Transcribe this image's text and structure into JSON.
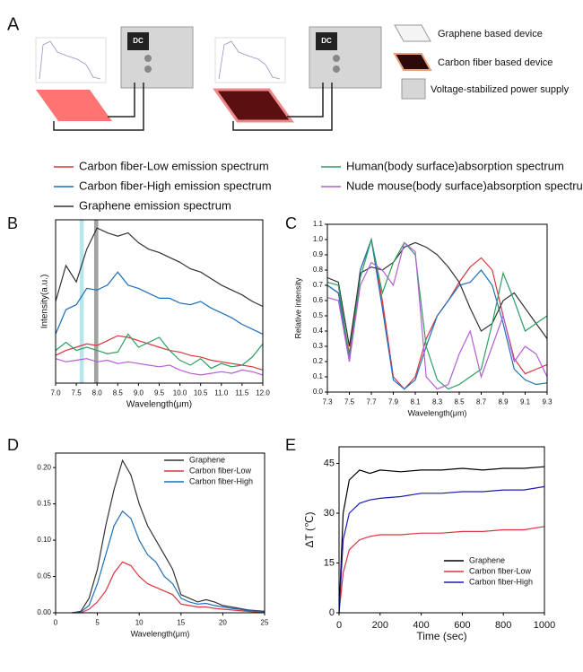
{
  "panel_a": {
    "label": "A",
    "power_label": "DC",
    "legend": [
      "Graphene based device",
      "Carbon fiber based device",
      "Voltage-stabilized power supply"
    ]
  },
  "chart_data": [
    {
      "type": "line",
      "panel_label": "B",
      "legend_position": "top",
      "xlabel": "Wavelength(μm)",
      "ylabel": "Intensity(a.u.)",
      "xlim": [
        7,
        12
      ],
      "ylim": [
        0,
        1
      ],
      "xticks": [
        {
          "value": 7,
          "label": "7.0"
        },
        7.5,
        {
          "value": 8,
          "label": "8.0"
        },
        8.5,
        {
          "value": 9,
          "label": "9.0"
        },
        9.5,
        {
          "value": 10,
          "label": "10.0"
        },
        10.5,
        {
          "value": 11,
          "label": "11.0"
        },
        11.5,
        {
          "value": 12,
          "label": "12.0"
        }
      ],
      "highlight_bands": [
        {
          "range": [
            7.58,
            7.68
          ],
          "color": "#7fd0de"
        },
        {
          "range": [
            7.93,
            8.03
          ],
          "color": "#555555"
        }
      ],
      "x": [
        7,
        7.25,
        7.5,
        7.75,
        8,
        8.25,
        8.5,
        8.75,
        9,
        9.25,
        9.5,
        9.75,
        10,
        10.25,
        10.5,
        10.75,
        11,
        11.25,
        11.5,
        11.75,
        12
      ],
      "series": [
        {
          "name": "Carbon fiber-Low emission spectrum",
          "color": "#d9363e",
          "values": [
            0.17,
            0.2,
            0.22,
            0.24,
            0.23,
            0.26,
            0.29,
            0.28,
            0.26,
            0.24,
            0.22,
            0.2,
            0.19,
            0.17,
            0.16,
            0.14,
            0.13,
            0.12,
            0.11,
            0.1,
            0.08
          ]
        },
        {
          "name": "Carbon fiber-High emission spectrum",
          "color": "#1f6fb8",
          "values": [
            0.3,
            0.45,
            0.48,
            0.58,
            0.57,
            0.6,
            0.68,
            0.6,
            0.58,
            0.55,
            0.52,
            0.52,
            0.49,
            0.48,
            0.5,
            0.46,
            0.43,
            0.4,
            0.36,
            0.33,
            0.3
          ]
        },
        {
          "name": "Graphene emission spectrum",
          "color": "#333333",
          "values": [
            0.5,
            0.72,
            0.62,
            0.82,
            0.95,
            0.92,
            0.9,
            0.92,
            0.86,
            0.82,
            0.8,
            0.77,
            0.74,
            0.7,
            0.68,
            0.64,
            0.6,
            0.57,
            0.54,
            0.5,
            0.47
          ]
        },
        {
          "name": "Human(body surface)absorption spectrum",
          "color": "#2e9e62",
          "values": [
            0.2,
            0.25,
            0.2,
            0.22,
            0.2,
            0.18,
            0.19,
            0.3,
            0.22,
            0.25,
            0.28,
            0.2,
            0.14,
            0.11,
            0.15,
            0.09,
            0.12,
            0.1,
            0.11,
            0.16,
            0.24
          ]
        },
        {
          "name": "Nude mouse(body surface)absorption spectrum",
          "color": "#b45fd4",
          "values": [
            0.15,
            0.13,
            0.14,
            0.15,
            0.13,
            0.14,
            0.12,
            0.13,
            0.12,
            0.11,
            0.1,
            0.11,
            0.08,
            0.06,
            0.05,
            0.06,
            0.07,
            0.06,
            0.08,
            0.07,
            0.05
          ]
        }
      ]
    },
    {
      "type": "line",
      "panel_label": "C",
      "xlabel": "Wavelength(μm)",
      "ylabel": "Relative intensity",
      "xlim": [
        7.3,
        9.3
      ],
      "ylim": [
        0,
        1.1
      ],
      "xticks": [
        7.3,
        7.5,
        7.7,
        7.9,
        8.1,
        8.3,
        8.5,
        8.7,
        8.9,
        9.1,
        9.3
      ],
      "yticks": [
        {
          "value": 0,
          "label": "0.0"
        },
        0.1,
        0.2,
        0.3,
        0.4,
        0.5,
        0.6,
        0.7,
        0.8,
        0.9,
        {
          "value": 1,
          "label": "1.0"
        },
        1.1
      ],
      "x": [
        7.3,
        7.4,
        7.5,
        7.6,
        7.7,
        7.8,
        7.9,
        8.0,
        8.1,
        8.2,
        8.3,
        8.4,
        8.5,
        8.6,
        8.7,
        8.8,
        8.9,
        9.0,
        9.1,
        9.2,
        9.3
      ],
      "series": [
        {
          "color": "#d9363e",
          "values": [
            0.7,
            0.65,
            0.25,
            0.8,
            1.0,
            0.6,
            0.1,
            0.02,
            0.1,
            0.35,
            0.5,
            0.6,
            0.72,
            0.82,
            0.88,
            0.8,
            0.5,
            0.22,
            0.12,
            0.15,
            0.18
          ]
        },
        {
          "color": "#1f6fb8",
          "values": [
            0.7,
            0.65,
            0.2,
            0.8,
            1.0,
            0.55,
            0.08,
            0.02,
            0.08,
            0.3,
            0.5,
            0.6,
            0.7,
            0.72,
            0.8,
            0.7,
            0.45,
            0.15,
            0.08,
            0.05,
            0.06
          ]
        },
        {
          "color": "#333333",
          "values": [
            0.75,
            0.72,
            0.3,
            0.78,
            0.82,
            0.8,
            0.85,
            0.95,
            0.98,
            0.95,
            0.9,
            0.82,
            0.72,
            0.55,
            0.4,
            0.45,
            0.6,
            0.65,
            0.55,
            0.45,
            0.35
          ]
        },
        {
          "color": "#2e9e62",
          "values": [
            0.72,
            0.7,
            0.22,
            0.75,
            1.0,
            0.65,
            0.85,
            0.98,
            0.9,
            0.3,
            0.08,
            0.02,
            0.05,
            0.1,
            0.15,
            0.45,
            0.78,
            0.6,
            0.4,
            0.45,
            0.5
          ]
        },
        {
          "color": "#b45fd4",
          "values": [
            0.62,
            0.6,
            0.2,
            0.7,
            0.85,
            0.8,
            0.7,
            0.98,
            0.92,
            0.1,
            0.02,
            0.05,
            0.25,
            0.4,
            0.1,
            0.3,
            0.5,
            0.2,
            0.3,
            0.25,
            0.1
          ]
        }
      ]
    },
    {
      "type": "line",
      "panel_label": "D",
      "legend_position": "upper right",
      "xlabel": "Wavelength(μm)",
      "xlim": [
        0,
        25
      ],
      "ylim": [
        0,
        0.22
      ],
      "xticks": [
        0,
        5,
        10,
        15,
        20,
        25
      ],
      "yticks": [
        {
          "value": 0,
          "label": "0.00"
        },
        0.05,
        {
          "value": 0.1,
          "label": "0.10"
        },
        0.15,
        {
          "value": 0.2,
          "label": "0.20"
        }
      ],
      "x": [
        2,
        3,
        4,
        5,
        6,
        7,
        8,
        9,
        10,
        11,
        12,
        13,
        14,
        15,
        16,
        17,
        18,
        19,
        20,
        21,
        22,
        23,
        24,
        25
      ],
      "series": [
        {
          "name": "Graphene",
          "color": "#333333",
          "values": [
            0,
            0.002,
            0.02,
            0.06,
            0.12,
            0.17,
            0.21,
            0.19,
            0.15,
            0.12,
            0.1,
            0.08,
            0.06,
            0.025,
            0.02,
            0.015,
            0.018,
            0.015,
            0.01,
            0.008,
            0.006,
            0.004,
            0.003,
            0.002
          ]
        },
        {
          "name": "Carbon fiber-Low",
          "color": "#d9363e",
          "values": [
            0,
            0,
            0.005,
            0.015,
            0.03,
            0.055,
            0.07,
            0.065,
            0.05,
            0.04,
            0.035,
            0.03,
            0.025,
            0.012,
            0.01,
            0.008,
            0.008,
            0.006,
            0.005,
            0.004,
            0.003,
            0.002,
            0.001,
            0.001
          ]
        },
        {
          "name": "Carbon fiber-High",
          "color": "#1f6fb8",
          "values": [
            0,
            0.001,
            0.01,
            0.04,
            0.08,
            0.12,
            0.14,
            0.13,
            0.1,
            0.08,
            0.07,
            0.05,
            0.04,
            0.02,
            0.015,
            0.012,
            0.013,
            0.01,
            0.008,
            0.006,
            0.005,
            0.003,
            0.002,
            0.001
          ]
        }
      ]
    },
    {
      "type": "line",
      "panel_label": "E",
      "legend_position": "lower right",
      "xlabel": "Time (sec)",
      "ylabel": "ΔT (℃)",
      "xlim": [
        0,
        1000
      ],
      "ylim": [
        0,
        50
      ],
      "xticks": [
        0,
        200,
        400,
        600,
        800,
        1000
      ],
      "yticks": [
        0,
        15,
        30,
        45
      ],
      "x": [
        0,
        20,
        50,
        100,
        150,
        200,
        300,
        400,
        500,
        600,
        700,
        800,
        900,
        1000
      ],
      "series": [
        {
          "name": "Graphene",
          "color": "#000000",
          "values": [
            0,
            30,
            40,
            43,
            42,
            43,
            42.5,
            43,
            43,
            43.5,
            43,
            43.5,
            43.5,
            44
          ]
        },
        {
          "name": "Carbon fiber-Low",
          "color": "#d9363e",
          "values": [
            0,
            12,
            19,
            22,
            23,
            23.5,
            23.5,
            24,
            24,
            24.5,
            24.5,
            25,
            25,
            26
          ]
        },
        {
          "name": "Carbon fiber-High",
          "color": "#1c1cb0",
          "values": [
            0,
            22,
            30,
            33,
            34,
            34.5,
            35,
            36,
            36,
            36.5,
            36.5,
            37,
            37,
            38
          ]
        }
      ]
    }
  ]
}
